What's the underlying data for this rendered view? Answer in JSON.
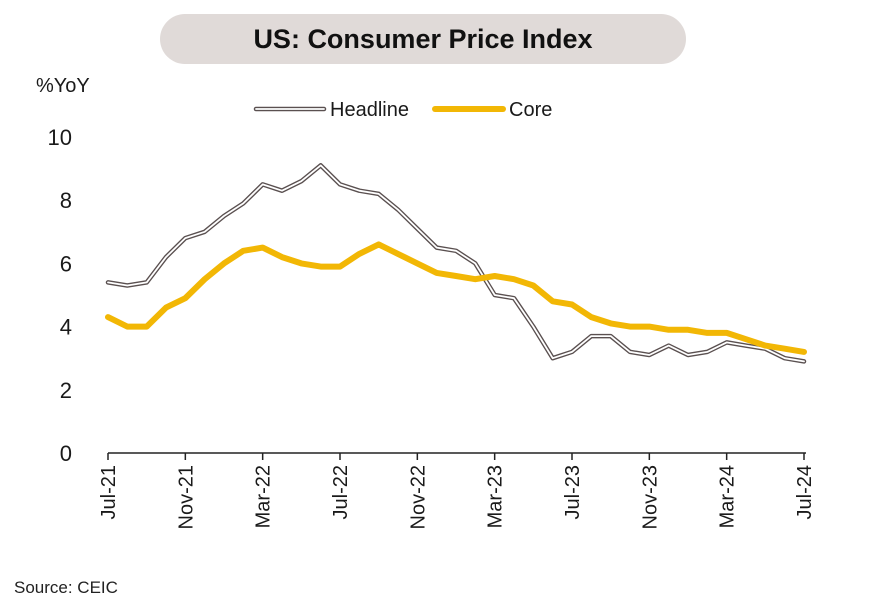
{
  "chart_data": {
    "type": "line",
    "title": "US: Consumer Price Index",
    "ylabel": "%YoY",
    "xlabel": "",
    "ylim": [
      0,
      10
    ],
    "yticks": [
      0,
      2,
      4,
      6,
      8,
      10
    ],
    "x_start": "Jul-21",
    "x": [
      "Jul-21",
      "Aug-21",
      "Sep-21",
      "Oct-21",
      "Nov-21",
      "Dec-21",
      "Jan-22",
      "Feb-22",
      "Mar-22",
      "Apr-22",
      "May-22",
      "Jun-22",
      "Jul-22",
      "Aug-22",
      "Sep-22",
      "Oct-22",
      "Nov-22",
      "Dec-22",
      "Jan-23",
      "Feb-23",
      "Mar-23",
      "Apr-23",
      "May-23",
      "Jun-23",
      "Jul-23",
      "Aug-23",
      "Sep-23",
      "Oct-23",
      "Nov-23",
      "Dec-23",
      "Jan-24",
      "Feb-24",
      "Mar-24",
      "Apr-24",
      "May-24",
      "Jun-24",
      "Jul-24"
    ],
    "xtick_labels": [
      "Jul-21",
      "Nov-21",
      "Mar-22",
      "Jul-22",
      "Nov-22",
      "Mar-23",
      "Jul-23",
      "Nov-23",
      "Mar-24",
      "Jul-24"
    ],
    "grid": false,
    "legend": "top",
    "series": [
      {
        "name": "Headline",
        "style": "outline",
        "color": "#5a5050",
        "values": [
          5.4,
          5.3,
          5.4,
          6.2,
          6.8,
          7.0,
          7.5,
          7.9,
          8.5,
          8.3,
          8.6,
          9.1,
          8.5,
          8.3,
          8.2,
          7.7,
          7.1,
          6.5,
          6.4,
          6.0,
          5.0,
          4.9,
          4.0,
          3.0,
          3.2,
          3.7,
          3.7,
          3.2,
          3.1,
          3.4,
          3.1,
          3.2,
          3.5,
          3.4,
          3.3,
          3.0,
          2.9
        ]
      },
      {
        "name": "Core",
        "style": "solid",
        "color": "#f2b705",
        "values": [
          4.3,
          4.0,
          4.0,
          4.6,
          4.9,
          5.5,
          6.0,
          6.4,
          6.5,
          6.2,
          6.0,
          5.9,
          5.9,
          6.3,
          6.6,
          6.3,
          6.0,
          5.7,
          5.6,
          5.5,
          5.6,
          5.5,
          5.3,
          4.8,
          4.7,
          4.3,
          4.1,
          4.0,
          4.0,
          3.9,
          3.9,
          3.8,
          3.8,
          3.6,
          3.4,
          3.3,
          3.2
        ]
      }
    ]
  },
  "source": "Source: CEIC"
}
